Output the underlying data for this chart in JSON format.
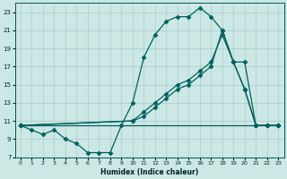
{
  "xlabel": "Humidex (Indice chaleur)",
  "background_color": "#cce8e4",
  "grid_color": "#aaccca",
  "line_color": "#006060",
  "xlim": [
    -0.5,
    23.5
  ],
  "ylim": [
    7,
    24
  ],
  "yticks": [
    7,
    9,
    11,
    13,
    15,
    17,
    19,
    21,
    23
  ],
  "xticks": [
    0,
    1,
    2,
    3,
    4,
    5,
    6,
    7,
    8,
    9,
    10,
    11,
    12,
    13,
    14,
    15,
    16,
    17,
    18,
    19,
    20,
    21,
    22,
    23
  ],
  "line1_x": [
    0,
    1,
    2,
    3,
    4,
    5,
    6,
    7,
    8,
    9,
    10,
    11,
    12,
    13,
    14,
    15,
    16,
    17,
    18,
    19,
    20,
    21,
    22,
    23
  ],
  "line1_y": [
    10.5,
    10.0,
    9.5,
    10.0,
    9.0,
    8.5,
    7.5,
    7.5,
    7.5,
    10.5,
    13.0,
    18.0,
    20.5,
    22.0,
    22.5,
    22.5,
    23.5,
    22.5,
    21.0,
    17.5,
    14.5,
    10.5,
    10.5,
    10.5
  ],
  "line2_x": [
    0,
    23
  ],
  "line2_y": [
    10.5,
    10.5
  ],
  "line3_x": [
    0,
    10,
    11,
    12,
    13,
    14,
    15,
    16,
    17,
    18,
    19,
    20,
    21,
    22,
    23
  ],
  "line3_y": [
    10.5,
    11.0,
    11.5,
    12.5,
    13.5,
    14.5,
    15.0,
    16.0,
    17.0,
    21.0,
    17.5,
    14.5,
    10.5,
    10.5,
    10.5
  ],
  "line4_x": [
    0,
    10,
    11,
    12,
    13,
    14,
    15,
    16,
    17,
    18,
    19,
    20,
    21,
    22,
    23
  ],
  "line4_y": [
    10.5,
    11.0,
    12.0,
    13.0,
    14.0,
    15.0,
    15.5,
    16.5,
    17.5,
    20.5,
    17.5,
    17.5,
    10.5,
    10.5,
    10.5
  ]
}
